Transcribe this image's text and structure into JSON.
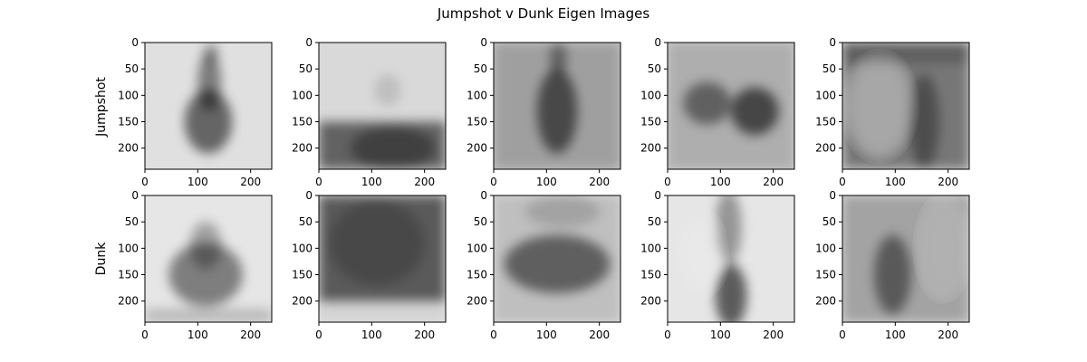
{
  "chart_data": {
    "type": "heatmap",
    "title": "Jumpshot v Dunk Eigen Images",
    "rows": [
      "Jumpshot",
      "Dunk"
    ],
    "columns_per_row": 5,
    "colormap": "gray",
    "image_size": [
      240,
      240
    ],
    "xlim": [
      0,
      240
    ],
    "ylim": [
      240,
      0
    ],
    "x_ticks": [
      0,
      100,
      200
    ],
    "y_ticks": [
      0,
      50,
      100,
      150,
      200
    ],
    "panels": [
      {
        "row": "Jumpshot",
        "col": 1,
        "features": [
          {
            "shape": "ellipse",
            "cx": 120,
            "cy": 150,
            "rx": 45,
            "ry": 60,
            "dark": 0.55
          },
          {
            "shape": "ellipse",
            "cx": 122,
            "cy": 75,
            "rx": 22,
            "ry": 55,
            "dark": 0.45
          },
          {
            "shape": "ellipse",
            "cx": 125,
            "cy": 20,
            "rx": 14,
            "ry": 18,
            "dark": 0.35
          }
        ],
        "base": 0.88
      },
      {
        "row": "Jumpshot",
        "col": 2,
        "features": [
          {
            "shape": "rect",
            "x": 0,
            "y": 150,
            "w": 240,
            "h": 90,
            "dark": 0.55
          },
          {
            "shape": "ellipse",
            "cx": 140,
            "cy": 200,
            "rx": 80,
            "ry": 40,
            "dark": 0.35
          },
          {
            "shape": "ellipse",
            "cx": 130,
            "cy": 90,
            "rx": 25,
            "ry": 30,
            "dark": 0.12
          }
        ],
        "base": 0.85
      },
      {
        "row": "Jumpshot",
        "col": 3,
        "features": [
          {
            "shape": "rect",
            "x": 0,
            "y": 0,
            "w": 240,
            "h": 240,
            "dark": 0.2
          },
          {
            "shape": "ellipse",
            "cx": 120,
            "cy": 130,
            "rx": 38,
            "ry": 80,
            "dark": 0.55
          },
          {
            "shape": "ellipse",
            "cx": 122,
            "cy": 30,
            "rx": 16,
            "ry": 30,
            "dark": 0.4
          }
        ],
        "base": 0.78
      },
      {
        "row": "Jumpshot",
        "col": 4,
        "features": [
          {
            "shape": "rect",
            "x": 0,
            "y": 0,
            "w": 240,
            "h": 240,
            "dark": 0.15
          },
          {
            "shape": "ellipse",
            "cx": 75,
            "cy": 115,
            "rx": 45,
            "ry": 40,
            "dark": 0.45
          },
          {
            "shape": "ellipse",
            "cx": 165,
            "cy": 130,
            "rx": 45,
            "ry": 45,
            "dark": 0.6
          }
        ],
        "base": 0.8
      },
      {
        "row": "Jumpshot",
        "col": 5,
        "features": [
          {
            "shape": "rect",
            "x": 0,
            "y": 0,
            "w": 240,
            "h": 240,
            "dark": 0.45
          },
          {
            "shape": "ellipse",
            "cx": 70,
            "cy": 120,
            "rx": 55,
            "ry": 90,
            "dark": -0.35
          },
          {
            "shape": "ellipse",
            "cx": 155,
            "cy": 150,
            "rx": 28,
            "ry": 90,
            "dark": 0.35
          },
          {
            "shape": "rect",
            "x": 0,
            "y": 0,
            "w": 240,
            "h": 40,
            "dark": 0.2
          }
        ],
        "base": 0.85
      },
      {
        "row": "Dunk",
        "col": 1,
        "features": [
          {
            "shape": "ellipse",
            "cx": 115,
            "cy": 150,
            "rx": 70,
            "ry": 60,
            "dark": 0.45
          },
          {
            "shape": "ellipse",
            "cx": 115,
            "cy": 95,
            "rx": 30,
            "ry": 45,
            "dark": 0.3
          },
          {
            "shape": "rect",
            "x": 0,
            "y": 215,
            "w": 240,
            "h": 25,
            "dark": 0.2
          }
        ],
        "base": 0.9
      },
      {
        "row": "Dunk",
        "col": 2,
        "features": [
          {
            "shape": "rect",
            "x": 0,
            "y": 0,
            "w": 240,
            "h": 200,
            "dark": 0.6
          },
          {
            "shape": "ellipse",
            "cx": 110,
            "cy": 90,
            "rx": 90,
            "ry": 80,
            "dark": 0.2
          },
          {
            "shape": "rect",
            "x": 0,
            "y": 200,
            "w": 240,
            "h": 40,
            "dark": 0.05
          }
        ],
        "base": 0.88
      },
      {
        "row": "Dunk",
        "col": 3,
        "features": [
          {
            "shape": "rect",
            "x": 0,
            "y": 0,
            "w": 240,
            "h": 240,
            "dark": 0.12
          },
          {
            "shape": "ellipse",
            "cx": 120,
            "cy": 130,
            "rx": 100,
            "ry": 55,
            "dark": 0.5
          },
          {
            "shape": "ellipse",
            "cx": 130,
            "cy": 30,
            "rx": 70,
            "ry": 30,
            "dark": 0.15
          }
        ],
        "base": 0.85
      },
      {
        "row": "Dunk",
        "col": 4,
        "features": [
          {
            "shape": "ellipse",
            "cx": 120,
            "cy": 190,
            "rx": 30,
            "ry": 60,
            "dark": 0.6
          },
          {
            "shape": "ellipse",
            "cx": 115,
            "cy": 60,
            "rx": 25,
            "ry": 70,
            "dark": 0.35
          },
          {
            "shape": "ellipse",
            "cx": 60,
            "cy": 110,
            "rx": 40,
            "ry": 70,
            "dark": -0.1
          }
        ],
        "base": 0.9
      },
      {
        "row": "Dunk",
        "col": 5,
        "features": [
          {
            "shape": "rect",
            "x": 0,
            "y": 0,
            "w": 240,
            "h": 240,
            "dark": 0.25
          },
          {
            "shape": "ellipse",
            "cx": 95,
            "cy": 150,
            "rx": 35,
            "ry": 75,
            "dark": 0.45
          },
          {
            "shape": "ellipse",
            "cx": 190,
            "cy": 100,
            "rx": 40,
            "ry": 90,
            "dark": -0.15
          }
        ],
        "base": 0.85
      }
    ]
  }
}
